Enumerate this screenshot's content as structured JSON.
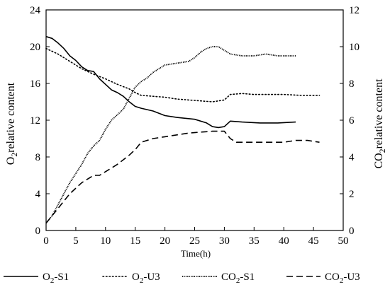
{
  "chart_data": {
    "type": "line",
    "xlabel": "Time(h)",
    "ylabel_left": {
      "main": "O",
      "sub": "2",
      "rest": "relative content"
    },
    "ylabel_right": {
      "main": "CO",
      "sub": "2",
      "rest": "relative content"
    },
    "xlim": [
      0,
      50
    ],
    "ylim_left": [
      0,
      24
    ],
    "ylim_right": [
      0,
      12
    ],
    "x_ticks": [
      "0",
      "5",
      "10",
      "15",
      "20",
      "25",
      "30",
      "35",
      "40",
      "45",
      "50"
    ],
    "y_left_ticks": [
      "0",
      "4",
      "8",
      "12",
      "16",
      "20",
      "24"
    ],
    "y_right_ticks": [
      "0",
      "2",
      "4",
      "6",
      "8",
      "10",
      "12"
    ],
    "grid": false,
    "legend_position": "bottom",
    "series": [
      {
        "name": {
          "main": "O",
          "sub": "2",
          "rest": "-S1"
        },
        "axis": "left",
        "style": "solid",
        "points": [
          [
            0,
            21.1
          ],
          [
            1,
            20.9
          ],
          [
            2,
            20.4
          ],
          [
            3,
            19.8
          ],
          [
            4,
            19.0
          ],
          [
            5,
            18.5
          ],
          [
            6,
            17.8
          ],
          [
            7,
            17.4
          ],
          [
            8,
            17.3
          ],
          [
            9,
            16.5
          ],
          [
            10,
            15.9
          ],
          [
            11,
            15.3
          ],
          [
            12,
            15.0
          ],
          [
            13,
            14.6
          ],
          [
            14,
            14.0
          ],
          [
            15,
            13.5
          ],
          [
            16,
            13.3
          ],
          [
            18,
            13.0
          ],
          [
            20,
            12.5
          ],
          [
            22,
            12.3
          ],
          [
            25,
            12.1
          ],
          [
            27,
            11.7
          ],
          [
            28,
            11.3
          ],
          [
            29,
            11.2
          ],
          [
            30,
            11.3
          ],
          [
            31,
            11.9
          ],
          [
            33,
            11.8
          ],
          [
            36,
            11.7
          ],
          [
            39,
            11.7
          ],
          [
            42,
            11.8
          ]
        ]
      },
      {
        "name": {
          "main": "O",
          "sub": "2",
          "rest": "-U3"
        },
        "axis": "left",
        "style": "dotted",
        "points": [
          [
            0,
            19.8
          ],
          [
            2,
            19.2
          ],
          [
            4,
            18.4
          ],
          [
            6,
            17.6
          ],
          [
            8,
            17.0
          ],
          [
            10,
            16.5
          ],
          [
            12,
            15.9
          ],
          [
            14,
            15.4
          ],
          [
            15,
            15.0
          ],
          [
            16,
            14.7
          ],
          [
            18,
            14.6
          ],
          [
            20,
            14.5
          ],
          [
            22,
            14.3
          ],
          [
            24,
            14.2
          ],
          [
            26,
            14.1
          ],
          [
            28,
            14.0
          ],
          [
            29,
            14.1
          ],
          [
            30,
            14.2
          ],
          [
            31,
            14.8
          ],
          [
            33,
            14.9
          ],
          [
            35,
            14.8
          ],
          [
            38,
            14.8
          ],
          [
            40,
            14.8
          ],
          [
            43,
            14.7
          ],
          [
            46,
            14.7
          ]
        ]
      },
      {
        "name": {
          "main": "CO",
          "sub": "2",
          "rest": "-S1"
        },
        "axis": "right",
        "style": "dense-dotted",
        "points": [
          [
            0,
            0.4
          ],
          [
            1,
            0.8
          ],
          [
            2,
            1.4
          ],
          [
            3,
            2.0
          ],
          [
            4,
            2.6
          ],
          [
            5,
            3.1
          ],
          [
            6,
            3.6
          ],
          [
            7,
            4.2
          ],
          [
            8,
            4.6
          ],
          [
            9,
            4.9
          ],
          [
            10,
            5.5
          ],
          [
            11,
            6.0
          ],
          [
            12,
            6.3
          ],
          [
            13,
            6.6
          ],
          [
            14,
            7.2
          ],
          [
            15,
            7.8
          ],
          [
            16,
            8.1
          ],
          [
            17,
            8.3
          ],
          [
            18,
            8.6
          ],
          [
            19,
            8.8
          ],
          [
            20,
            9.0
          ],
          [
            22,
            9.1
          ],
          [
            24,
            9.2
          ],
          [
            25,
            9.4
          ],
          [
            26,
            9.7
          ],
          [
            27,
            9.9
          ],
          [
            28,
            10.0
          ],
          [
            29,
            10.0
          ],
          [
            30,
            9.8
          ],
          [
            31,
            9.6
          ],
          [
            33,
            9.5
          ],
          [
            35,
            9.5
          ],
          [
            37,
            9.6
          ],
          [
            39,
            9.5
          ],
          [
            42,
            9.5
          ]
        ]
      },
      {
        "name": {
          "main": "CO",
          "sub": "2",
          "rest": "-U3"
        },
        "axis": "right",
        "style": "dashed",
        "points": [
          [
            0,
            0.4
          ],
          [
            2,
            1.2
          ],
          [
            4,
            2.0
          ],
          [
            6,
            2.6
          ],
          [
            7,
            2.8
          ],
          [
            8,
            3.0
          ],
          [
            9,
            3.0
          ],
          [
            10,
            3.2
          ],
          [
            12,
            3.6
          ],
          [
            14,
            4.1
          ],
          [
            15,
            4.4
          ],
          [
            16,
            4.8
          ],
          [
            18,
            5.0
          ],
          [
            20,
            5.1
          ],
          [
            22,
            5.2
          ],
          [
            24,
            5.3
          ],
          [
            26,
            5.35
          ],
          [
            28,
            5.4
          ],
          [
            30,
            5.4
          ],
          [
            31,
            5.0
          ],
          [
            32,
            4.8
          ],
          [
            34,
            4.8
          ],
          [
            37,
            4.8
          ],
          [
            40,
            4.8
          ],
          [
            42,
            4.9
          ],
          [
            44,
            4.9
          ],
          [
            46,
            4.8
          ]
        ]
      }
    ]
  }
}
